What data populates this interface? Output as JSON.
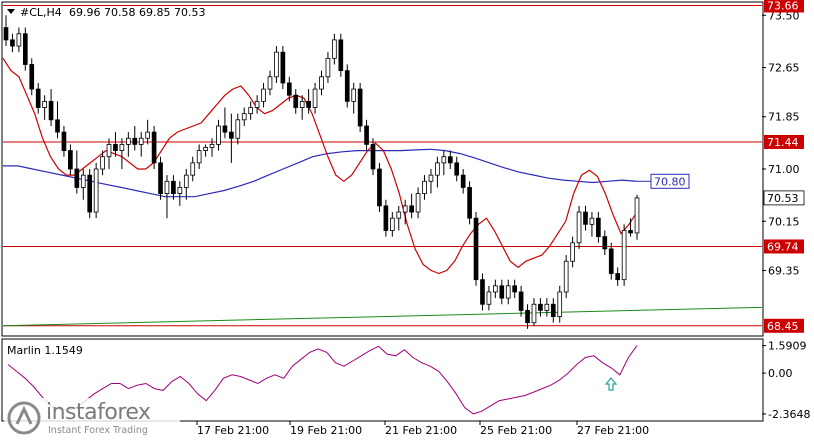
{
  "header": {
    "symbol_timeframe": "#CL,H4",
    "ohlc": "69.96 70.58 69.85 70.53"
  },
  "indicator": {
    "title": "Marlin 1.1549"
  },
  "logo": {
    "brand": "instaforex",
    "tagline": "Instant Forex Trading"
  },
  "colors": {
    "bull_body": "#ffffff",
    "bear_body": "#000000",
    "level_line": "#cc0000",
    "ma_slow": "#2b2bb8",
    "ma_fast": "#cc0000",
    "trend_line": "#1a8c1a",
    "oscillator": "#a0007a",
    "arrow": "#2aa39a"
  },
  "chart_data": [
    {
      "type": "candlestick",
      "title": "#CL,H4",
      "x_labels": [
        "17 Feb 21:00",
        "19 Feb 21:00",
        "21 Feb 21:00",
        "25 Feb 21:00",
        "27 Feb 21:00"
      ],
      "y_ticks": [
        "73.50",
        "72.65",
        "71.85",
        "71.00",
        "70.15",
        "69.35"
      ],
      "ylim": [
        68.3,
        73.7
      ],
      "levels": [
        {
          "name": "resistance_top",
          "value": 73.66,
          "label": "73.66"
        },
        {
          "name": "resistance",
          "value": 71.44,
          "label": "71.44"
        },
        {
          "name": "support",
          "value": 69.74,
          "label": "69.74"
        },
        {
          "name": "support_low",
          "value": 68.45,
          "label": "68.45"
        }
      ],
      "current_price": {
        "value": 70.53,
        "label": "70.53"
      },
      "ma_slow_value": {
        "value": 70.8,
        "label": "70.80"
      },
      "candles": [
        [
          73.3,
          73.5,
          73.0,
          73.1
        ],
        [
          73.1,
          73.2,
          72.9,
          73.0
        ],
        [
          73.0,
          73.3,
          72.9,
          73.2
        ],
        [
          73.2,
          73.3,
          72.6,
          72.7
        ],
        [
          72.7,
          72.8,
          72.2,
          72.3
        ],
        [
          72.3,
          72.4,
          71.9,
          72.0
        ],
        [
          72.0,
          72.2,
          71.8,
          72.1
        ],
        [
          72.1,
          72.3,
          71.7,
          71.8
        ],
        [
          71.8,
          72.1,
          71.5,
          71.6
        ],
        [
          71.6,
          71.7,
          71.2,
          71.3
        ],
        [
          71.3,
          71.4,
          70.9,
          71.0
        ],
        [
          71.0,
          71.3,
          70.6,
          70.7
        ],
        [
          70.7,
          71.0,
          70.5,
          70.9
        ],
        [
          70.9,
          71.0,
          70.2,
          70.3
        ],
        [
          70.3,
          71.1,
          70.2,
          71.0
        ],
        [
          71.0,
          71.3,
          70.9,
          71.2
        ],
        [
          71.2,
          71.5,
          71.0,
          71.4
        ],
        [
          71.4,
          71.6,
          71.2,
          71.3
        ],
        [
          71.3,
          71.5,
          71.0,
          71.4
        ],
        [
          71.4,
          71.6,
          71.2,
          71.5
        ],
        [
          71.5,
          71.7,
          71.3,
          71.4
        ],
        [
          71.4,
          71.6,
          71.2,
          71.5
        ],
        [
          71.5,
          71.8,
          71.4,
          71.6
        ],
        [
          71.6,
          71.7,
          71.0,
          71.1
        ],
        [
          71.1,
          71.2,
          70.5,
          70.6
        ],
        [
          70.6,
          70.9,
          70.2,
          70.8
        ],
        [
          70.8,
          70.9,
          70.5,
          70.6
        ],
        [
          70.6,
          70.8,
          70.4,
          70.7
        ],
        [
          70.7,
          71.0,
          70.5,
          70.9
        ],
        [
          70.9,
          71.2,
          70.8,
          71.1
        ],
        [
          71.1,
          71.4,
          71.0,
          71.3
        ],
        [
          71.3,
          71.4,
          71.2,
          71.35
        ],
        [
          71.35,
          71.5,
          71.2,
          71.4
        ],
        [
          71.4,
          71.8,
          71.3,
          71.7
        ],
        [
          71.7,
          72.0,
          71.5,
          71.6
        ],
        [
          71.6,
          71.9,
          71.1,
          71.5
        ],
        [
          71.5,
          71.9,
          71.4,
          71.8
        ],
        [
          71.8,
          72.0,
          71.7,
          71.9
        ],
        [
          71.9,
          72.1,
          71.8,
          72.0
        ],
        [
          72.0,
          72.2,
          71.9,
          72.1
        ],
        [
          72.1,
          72.4,
          72.0,
          72.3
        ],
        [
          72.3,
          72.6,
          72.2,
          72.5
        ],
        [
          72.5,
          73.0,
          72.4,
          72.9
        ],
        [
          72.9,
          73.0,
          72.3,
          72.4
        ],
        [
          72.4,
          72.5,
          72.1,
          72.2
        ],
        [
          72.2,
          72.3,
          71.9,
          72.0
        ],
        [
          72.0,
          72.2,
          71.8,
          72.1
        ],
        [
          72.1,
          72.3,
          71.9,
          72.0
        ],
        [
          72.0,
          72.4,
          71.9,
          72.3
        ],
        [
          72.3,
          72.6,
          72.2,
          72.5
        ],
        [
          72.5,
          72.9,
          72.4,
          72.8
        ],
        [
          72.8,
          73.2,
          72.7,
          73.1
        ],
        [
          73.1,
          73.2,
          72.5,
          72.6
        ],
        [
          72.6,
          72.7,
          72.0,
          72.1
        ],
        [
          72.1,
          72.4,
          71.9,
          72.3
        ],
        [
          72.3,
          72.4,
          71.6,
          71.7
        ],
        [
          71.7,
          71.8,
          71.3,
          71.4
        ],
        [
          71.4,
          71.5,
          70.9,
          71.0
        ],
        [
          71.0,
          71.1,
          70.3,
          70.4
        ],
        [
          70.4,
          70.5,
          69.9,
          70.0
        ],
        [
          70.0,
          70.3,
          69.9,
          70.2
        ],
        [
          70.2,
          70.4,
          70.0,
          70.3
        ],
        [
          70.3,
          70.5,
          70.1,
          70.4
        ],
        [
          70.4,
          70.6,
          70.2,
          70.3
        ],
        [
          70.3,
          70.7,
          70.2,
          70.6
        ],
        [
          70.6,
          70.9,
          70.5,
          70.8
        ],
        [
          70.8,
          71.0,
          70.6,
          70.9
        ],
        [
          70.9,
          71.2,
          70.7,
          71.1
        ],
        [
          71.1,
          71.3,
          70.9,
          71.2
        ],
        [
          71.2,
          71.3,
          71.0,
          71.1
        ],
        [
          71.1,
          71.2,
          70.8,
          70.9
        ],
        [
          70.9,
          71.0,
          70.6,
          70.7
        ],
        [
          70.7,
          70.8,
          70.1,
          70.2
        ],
        [
          70.2,
          70.3,
          69.1,
          69.2
        ],
        [
          69.2,
          69.3,
          68.7,
          68.8
        ],
        [
          68.8,
          69.1,
          68.7,
          69.0
        ],
        [
          69.0,
          69.2,
          68.9,
          69.1
        ],
        [
          69.1,
          69.2,
          68.8,
          68.9
        ],
        [
          68.9,
          69.2,
          68.8,
          69.1
        ],
        [
          69.1,
          69.2,
          68.9,
          69.0
        ],
        [
          69.0,
          69.1,
          68.6,
          68.7
        ],
        [
          68.7,
          68.8,
          68.4,
          68.5
        ],
        [
          68.5,
          68.9,
          68.45,
          68.8
        ],
        [
          68.8,
          68.9,
          68.6,
          68.7
        ],
        [
          68.7,
          68.9,
          68.6,
          68.8
        ],
        [
          68.8,
          68.9,
          68.5,
          68.6
        ],
        [
          68.6,
          69.1,
          68.5,
          69.0
        ],
        [
          69.0,
          69.6,
          68.9,
          69.5
        ],
        [
          69.5,
          69.9,
          69.4,
          69.8
        ],
        [
          69.8,
          70.4,
          69.7,
          70.3
        ],
        [
          70.3,
          70.4,
          70.0,
          70.1
        ],
        [
          70.1,
          70.3,
          69.9,
          70.2
        ],
        [
          70.2,
          70.3,
          69.8,
          69.9
        ],
        [
          69.9,
          70.0,
          69.6,
          69.7
        ],
        [
          69.7,
          69.8,
          69.2,
          69.3
        ],
        [
          69.3,
          69.4,
          69.1,
          69.2
        ],
        [
          69.2,
          70.1,
          69.1,
          70.0
        ],
        [
          70.0,
          70.2,
          69.9,
          69.96
        ],
        [
          69.96,
          70.58,
          69.85,
          70.53
        ]
      ],
      "ma_fast": [
        72.8,
        72.6,
        72.5,
        72.2,
        71.9,
        71.5,
        71.2,
        71.0,
        70.9,
        70.9,
        71.0,
        71.1,
        71.2,
        71.3,
        71.25,
        71.2,
        71.1,
        71.0,
        71.0,
        71.1,
        71.3,
        71.5,
        71.6,
        71.65,
        71.7,
        71.75,
        71.9,
        72.05,
        72.2,
        72.3,
        72.35,
        72.2,
        72.0,
        71.9,
        71.95,
        72.05,
        72.15,
        72.2,
        72.15,
        71.9,
        71.55,
        71.2,
        70.9,
        70.8,
        70.9,
        71.1,
        71.3,
        71.42,
        71.3,
        71.0,
        70.6,
        70.1,
        69.7,
        69.45,
        69.35,
        69.3,
        69.35,
        69.5,
        69.75,
        69.95,
        70.1,
        70.2,
        70.0,
        69.75,
        69.5,
        69.4,
        69.5,
        69.55,
        69.6,
        69.75,
        69.95,
        70.15,
        70.6,
        70.9,
        70.98,
        70.88,
        70.6,
        70.25,
        69.95,
        70.1,
        70.3
      ],
      "ma_slow": [
        71.05,
        71.05,
        71.0,
        70.95,
        70.9,
        70.85,
        70.8,
        70.75,
        70.7,
        70.65,
        70.6,
        70.55,
        70.55,
        70.55,
        70.6,
        70.65,
        70.72,
        70.8,
        70.9,
        71.0,
        71.1,
        71.2,
        71.25,
        71.28,
        71.3,
        71.3,
        71.3,
        71.3,
        71.31,
        71.32,
        71.3,
        71.25,
        71.18,
        71.1,
        71.02,
        70.95,
        70.9,
        70.85,
        70.82,
        70.8,
        70.78,
        70.8,
        70.82,
        70.8
      ],
      "trend_line": {
        "from": 68.45,
        "to": 68.75
      }
    },
    {
      "type": "line",
      "title": "Marlin 1.1549",
      "y_ticks": [
        "1.5909",
        "0.00",
        "-2.3648"
      ],
      "ylim": [
        -2.6,
        1.8
      ],
      "values": [
        0.5,
        0.1,
        -0.3,
        -0.8,
        -1.4,
        -1.9,
        -2.1,
        -2.15,
        -2.0,
        -1.6,
        -1.2,
        -0.9,
        -0.6,
        -0.6,
        -0.9,
        -0.7,
        -0.6,
        -0.9,
        -1.0,
        -0.5,
        -0.2,
        -0.6,
        -1.2,
        -1.6,
        -1.0,
        -0.3,
        -0.1,
        -0.2,
        -0.4,
        -0.6,
        -0.3,
        -0.1,
        -0.3,
        0.4,
        0.8,
        1.2,
        1.4,
        1.2,
        0.6,
        0.4,
        0.7,
        1.0,
        1.3,
        1.55,
        1.1,
        1.0,
        1.35,
        0.9,
        0.6,
        0.4,
        0.1,
        -0.5,
        -1.2,
        -2.0,
        -2.36,
        -2.2,
        -1.9,
        -1.6,
        -1.5,
        -1.4,
        -1.3,
        -1.1,
        -0.9,
        -0.7,
        -0.4,
        0.0,
        0.5,
        0.9,
        1.0,
        0.6,
        0.3,
        -0.1,
        0.9,
        1.59
      ],
      "marker": "up-arrow"
    }
  ]
}
